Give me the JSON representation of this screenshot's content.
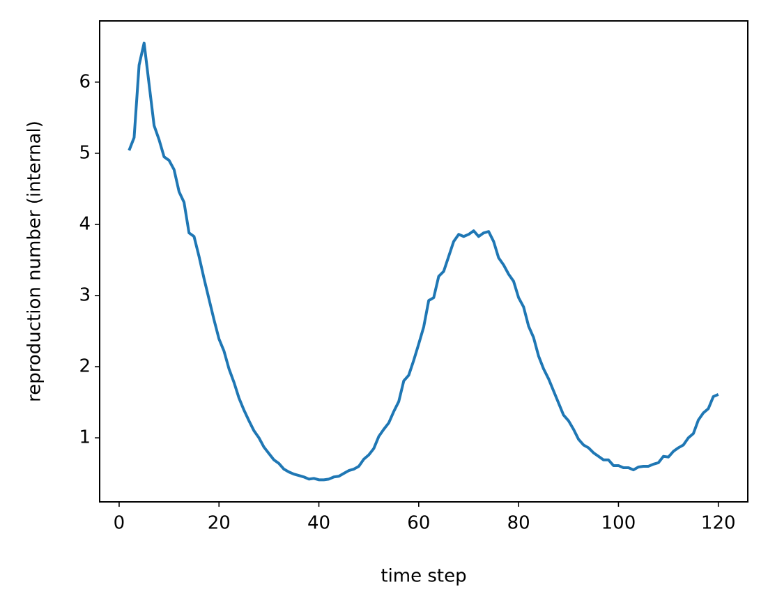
{
  "chart_data": {
    "type": "line",
    "xlabel": "time step",
    "ylabel": "reproduction number (internal)",
    "x": [
      2,
      3,
      4,
      5,
      6,
      7,
      8,
      9,
      10,
      11,
      12,
      13,
      14,
      15,
      16,
      17,
      18,
      19,
      20,
      21,
      22,
      23,
      24,
      25,
      26,
      27,
      28,
      29,
      30,
      31,
      32,
      33,
      34,
      35,
      36,
      37,
      38,
      39,
      40,
      41,
      42,
      43,
      44,
      45,
      46,
      47,
      48,
      49,
      50,
      51,
      52,
      53,
      54,
      55,
      56,
      57,
      58,
      59,
      60,
      61,
      62,
      63,
      64,
      65,
      66,
      67,
      68,
      69,
      70,
      71,
      72,
      73,
      74,
      75,
      76,
      77,
      78,
      79,
      80,
      81,
      82,
      83,
      84,
      85,
      86,
      87,
      88,
      89,
      90,
      91,
      92,
      93,
      94,
      95,
      96,
      97,
      98,
      99,
      100,
      101,
      102,
      103,
      104,
      105,
      106,
      107,
      108,
      109,
      110,
      111,
      112,
      113,
      114,
      115,
      116,
      117,
      118,
      119,
      120
    ],
    "series": [
      {
        "color": "#1f77b4",
        "values": [
          5.04,
          5.22,
          6.24,
          6.55,
          5.97,
          5.39,
          5.19,
          4.95,
          4.9,
          4.77,
          4.46,
          4.31,
          3.88,
          3.83,
          3.55,
          3.24,
          2.95,
          2.66,
          2.39,
          2.22,
          1.97,
          1.78,
          1.56,
          1.39,
          1.24,
          1.1,
          1.0,
          0.87,
          0.78,
          0.69,
          0.64,
          0.56,
          0.52,
          0.49,
          0.47,
          0.45,
          0.42,
          0.43,
          0.41,
          0.41,
          0.42,
          0.45,
          0.46,
          0.5,
          0.54,
          0.56,
          0.6,
          0.7,
          0.76,
          0.85,
          1.02,
          1.12,
          1.21,
          1.37,
          1.51,
          1.8,
          1.88,
          2.09,
          2.32,
          2.56,
          2.93,
          2.97,
          3.27,
          3.34,
          3.55,
          3.76,
          3.86,
          3.83,
          3.86,
          3.91,
          3.83,
          3.88,
          3.9,
          3.76,
          3.53,
          3.43,
          3.3,
          3.2,
          2.97,
          2.84,
          2.57,
          2.41,
          2.15,
          1.97,
          1.83,
          1.66,
          1.49,
          1.32,
          1.24,
          1.12,
          0.98,
          0.9,
          0.86,
          0.79,
          0.74,
          0.69,
          0.69,
          0.61,
          0.61,
          0.58,
          0.58,
          0.55,
          0.59,
          0.6,
          0.6,
          0.63,
          0.65,
          0.74,
          0.73,
          0.81,
          0.86,
          0.9,
          1.0,
          1.06,
          1.25,
          1.35,
          1.41,
          1.58,
          1.61
        ]
      }
    ],
    "xlim": [
      -3.9,
      125.9
    ],
    "ylim": [
      0.1,
      6.86
    ],
    "xticks": [
      0,
      20,
      40,
      60,
      80,
      100,
      120
    ],
    "yticks": [
      1,
      2,
      3,
      4,
      5,
      6
    ],
    "grid": false
  }
}
